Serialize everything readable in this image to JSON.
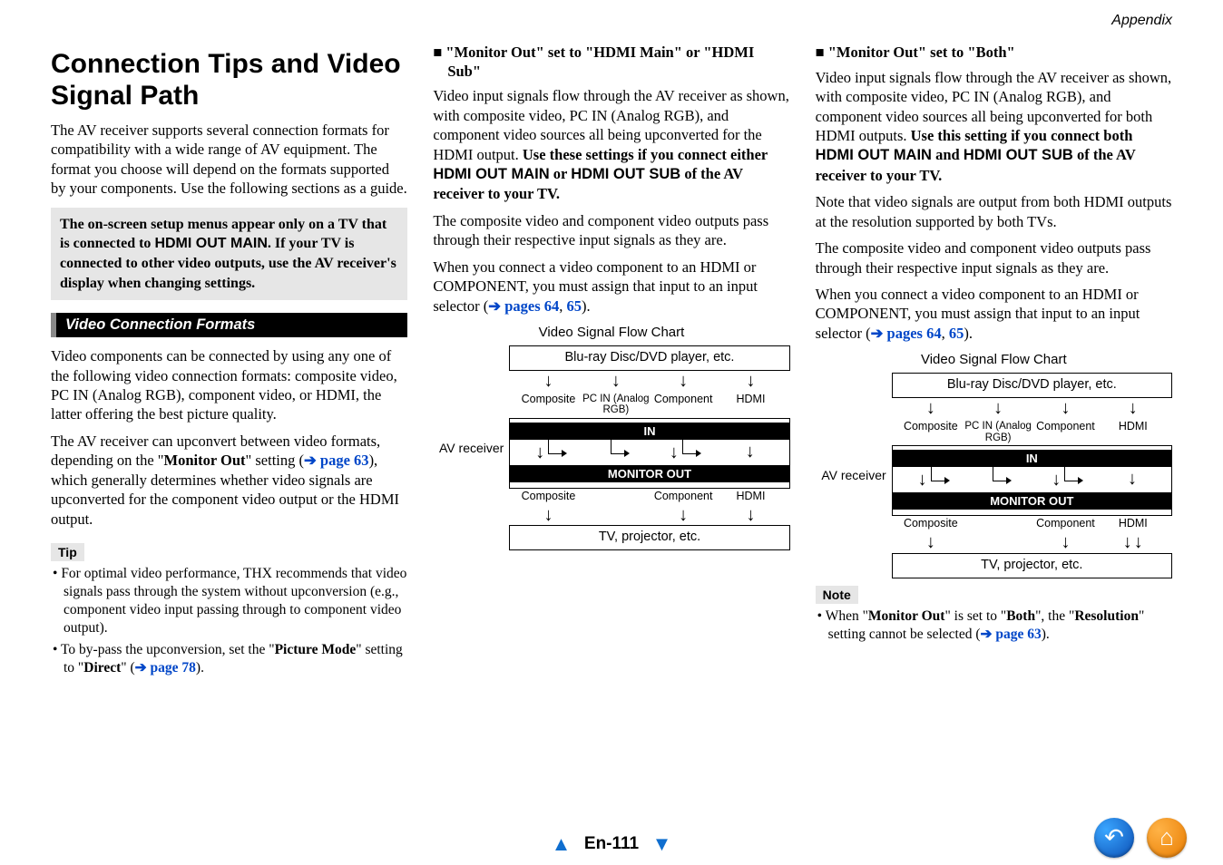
{
  "header": {
    "appendix": "Appendix"
  },
  "col1": {
    "title": "Connection Tips and Video Signal Path",
    "intro": "The AV receiver supports several connection formats for compatibility with a wide range of AV equipment. The format you choose will depend on the formats supported by your components. Use the following sections as a guide.",
    "shaded_prefix": "The on-screen setup menus appear only on a TV that is connected to ",
    "shaded_mid": "HDMI OUT MAIN",
    "shaded_suffix": ". If your TV is connected to other video outputs, use the AV receiver's display when changing settings.",
    "section_bar": "Video Connection Formats",
    "para2": "Video components can be connected by using any one of the following video connection formats: composite video, PC IN (Analog RGB), component video, or HDMI, the latter offering the best picture quality.",
    "para3_a": "The AV receiver can upconvert between video formats, depending on the \"",
    "para3_b": "Monitor Out",
    "para3_c": "\" setting (",
    "para3_link": "➔ page 63",
    "para3_d": "), which generally determines whether video signals are upconverted for the component video output or the HDMI output.",
    "tip_label": "Tip",
    "tip1": "For optimal video performance, THX recommends that video signals pass through the system without upconversion (e.g., component video input passing through to component video output).",
    "tip2_a": "To by-pass the upconversion, set the \"",
    "tip2_b": "Picture Mode",
    "tip2_c": "\" setting to \"",
    "tip2_d": "Direct",
    "tip2_e": "\" (",
    "tip2_link": "➔ page 78",
    "tip2_f": ")."
  },
  "col2": {
    "sub_title": "\"Monitor Out\" set to \"HDMI Main\" or \"HDMI Sub\"",
    "para1_a": "Video input signals flow through the AV receiver as shown, with composite video, PC IN (Analog RGB), and component video sources all being upconverted for the HDMI output. ",
    "para1_b": "Use these settings if you connect either ",
    "para1_c": "HDMI OUT MAIN",
    "para1_d": " or ",
    "para1_e": "HDMI OUT SUB",
    "para1_f": " of the AV receiver to your TV.",
    "para2": "The composite video and component video outputs pass through their respective input signals as they are.",
    "para3_a": "When you connect a video component to an HDMI or COMPONENT, you must assign that input to an input selector (",
    "para3_link": "➔ pages 64",
    "para3_comma": ", ",
    "para3_link2": "65",
    "para3_b": ")."
  },
  "col3": {
    "sub_title": "\"Monitor Out\" set to \"Both\"",
    "para1_a": "Video input signals flow through the AV receiver as shown, with composite video, PC IN (Analog RGB), and component video sources all being upconverted for both HDMI outputs. ",
    "para1_b": "Use this setting if you connect both ",
    "para1_c": "HDMI OUT MAIN",
    "para1_d": " and ",
    "para1_e": "HDMI OUT SUB",
    "para1_f": " of the AV receiver to your TV.",
    "para_note": "Note that video signals are output from both HDMI outputs at the resolution supported by both TVs.",
    "para2": "The composite video and component video outputs pass through their respective input signals as they are.",
    "para3_a": "When you connect a video component to an HDMI or COMPONENT, you must assign that input to an input selector (",
    "para3_link": "➔ pages 64",
    "para3_comma": ", ",
    "para3_link2": "65",
    "para3_b": ").",
    "note_label": "Note",
    "note_a": "When \"",
    "note_b": "Monitor Out",
    "note_c": "\" is set to \"",
    "note_d": "Both",
    "note_e": "\", the \"",
    "note_f": "Resolution",
    "note_g": "\" setting cannot be selected (",
    "note_link": "➔ page 63",
    "note_h": ")."
  },
  "diagram": {
    "title": "Video Signal Flow Chart",
    "top_box": "Blu-ray Disc/DVD player, etc.",
    "in_labels": [
      "Composite",
      "PC IN\n(Analog RGB)",
      "Component",
      "HDMI"
    ],
    "in_band": "IN",
    "out_band": "MONITOR OUT",
    "out_labels": [
      "Composite",
      "Component",
      "HDMI"
    ],
    "bottom_box": "TV, projector, etc.",
    "left_label": "AV receiver"
  },
  "footer": {
    "page": "En-111"
  }
}
